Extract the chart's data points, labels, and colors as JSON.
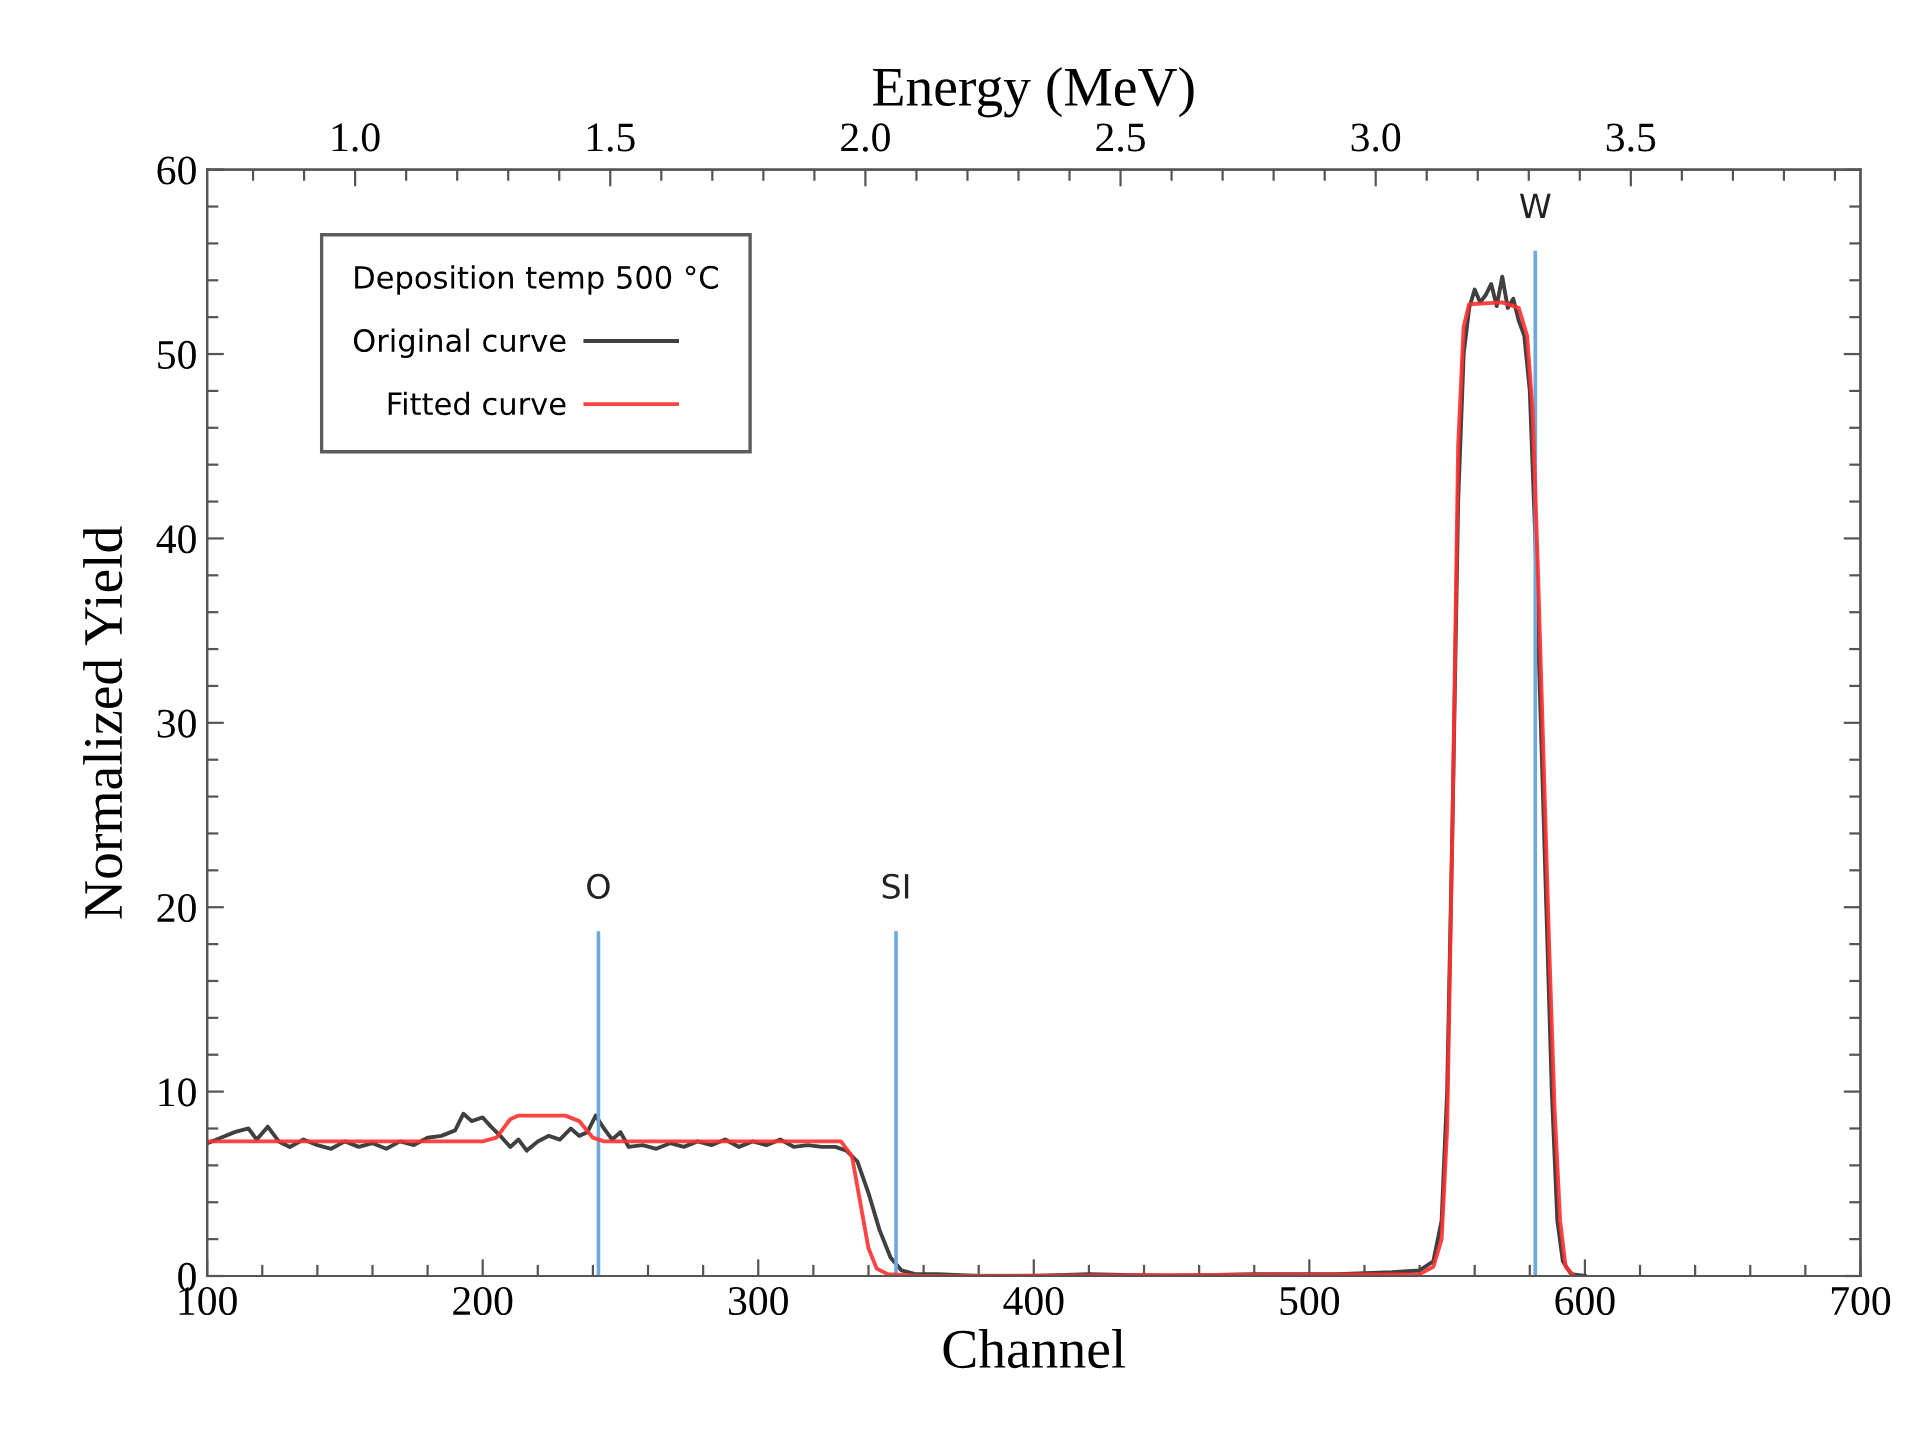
{
  "chart_data": {
    "type": "line",
    "xlabel": "Channel",
    "ylabel": "Normalized Yield",
    "x2label": "Energy (MeV)",
    "legend_title": "Deposition temp 500 °C",
    "xlim": [
      100,
      700
    ],
    "xticks": [
      100,
      {
        "value": 120,
        "label": null
      },
      {
        "value": 140,
        "label": null
      },
      {
        "value": 160,
        "label": null
      },
      {
        "value": 180,
        "label": null
      },
      200,
      {
        "value": 220,
        "label": null
      },
      {
        "value": 240,
        "label": null
      },
      {
        "value": 260,
        "label": null
      },
      {
        "value": 280,
        "label": null
      },
      300,
      {
        "value": 320,
        "label": null
      },
      {
        "value": 340,
        "label": null
      },
      {
        "value": 360,
        "label": null
      },
      {
        "value": 380,
        "label": null
      },
      400,
      {
        "value": 420,
        "label": null
      },
      {
        "value": 440,
        "label": null
      },
      {
        "value": 460,
        "label": null
      },
      {
        "value": 480,
        "label": null
      },
      500,
      {
        "value": 520,
        "label": null
      },
      {
        "value": 540,
        "label": null
      },
      {
        "value": 560,
        "label": null
      },
      {
        "value": 580,
        "label": null
      },
      600,
      {
        "value": 620,
        "label": null
      },
      {
        "value": 640,
        "label": null
      },
      {
        "value": 660,
        "label": null
      },
      {
        "value": 680,
        "label": null
      },
      700
    ],
    "ylim": [
      0,
      60
    ],
    "yticks": [
      0,
      {
        "value": 2,
        "label": null
      },
      {
        "value": 4,
        "label": null
      },
      {
        "value": 6,
        "label": null
      },
      {
        "value": 8,
        "label": null
      },
      10,
      {
        "value": 12,
        "label": null
      },
      {
        "value": 14,
        "label": null
      },
      {
        "value": 16,
        "label": null
      },
      {
        "value": 18,
        "label": null
      },
      20,
      {
        "value": 22,
        "label": null
      },
      {
        "value": 24,
        "label": null
      },
      {
        "value": 26,
        "label": null
      },
      {
        "value": 28,
        "label": null
      },
      30,
      {
        "value": 32,
        "label": null
      },
      {
        "value": 34,
        "label": null
      },
      {
        "value": 36,
        "label": null
      },
      {
        "value": 38,
        "label": null
      },
      40,
      {
        "value": 42,
        "label": null
      },
      {
        "value": 44,
        "label": null
      },
      {
        "value": 46,
        "label": null
      },
      {
        "value": 48,
        "label": null
      },
      50,
      {
        "value": 52,
        "label": null
      },
      {
        "value": 54,
        "label": null
      },
      {
        "value": 56,
        "label": null
      },
      {
        "value": 58,
        "label": null
      },
      60
    ],
    "x2lim": [
      0.71,
      3.95
    ],
    "x2ticks": [
      {
        "value": 0.8,
        "label": null
      },
      {
        "value": 0.9,
        "label": null
      },
      {
        "value": 1.0,
        "label": "1.0"
      },
      {
        "value": 1.1,
        "label": null
      },
      {
        "value": 1.2,
        "label": null
      },
      {
        "value": 1.3,
        "label": null
      },
      {
        "value": 1.4,
        "label": null
      },
      1.5,
      {
        "value": 1.6,
        "label": null
      },
      {
        "value": 1.7,
        "label": null
      },
      {
        "value": 1.8,
        "label": null
      },
      {
        "value": 1.9,
        "label": null
      },
      {
        "value": 2.0,
        "label": "2.0"
      },
      {
        "value": 2.1,
        "label": null
      },
      {
        "value": 2.2,
        "label": null
      },
      {
        "value": 2.3,
        "label": null
      },
      {
        "value": 2.4,
        "label": null
      },
      2.5,
      {
        "value": 2.6,
        "label": null
      },
      {
        "value": 2.7,
        "label": null
      },
      {
        "value": 2.8,
        "label": null
      },
      {
        "value": 2.9,
        "label": null
      },
      {
        "value": 3.0,
        "label": "3.0"
      },
      {
        "value": 3.1,
        "label": null
      },
      {
        "value": 3.2,
        "label": null
      },
      {
        "value": 3.3,
        "label": null
      },
      {
        "value": 3.4,
        "label": null
      },
      3.5,
      {
        "value": 3.6,
        "label": null
      },
      {
        "value": 3.7,
        "label": null
      },
      {
        "value": 3.8,
        "label": null
      },
      {
        "value": 3.9,
        "label": null
      }
    ],
    "grid": false,
    "legend": "top left",
    "marker": "none",
    "line_style": "solid",
    "ref_lines": [
      {
        "axis": "x",
        "value": 242,
        "label": "O",
        "color": "#6fa8dc"
      },
      {
        "axis": "x",
        "value": 350,
        "label": "SI",
        "color": "#6fa8dc"
      },
      {
        "axis": "x",
        "value": 582,
        "label": "W",
        "color": "#6fa8dc"
      }
    ],
    "series": [
      {
        "name": "Original curve",
        "color": "#404040",
        "x": [
          100,
          105,
          110,
          115,
          118,
          122,
          126,
          130,
          135,
          140,
          145,
          150,
          155,
          160,
          165,
          170,
          175,
          180,
          185,
          190,
          193,
          196,
          200,
          203,
          207,
          210,
          213,
          216,
          220,
          224,
          228,
          232,
          235,
          238,
          241,
          244,
          247,
          250,
          253,
          258,
          263,
          268,
          273,
          278,
          283,
          288,
          293,
          298,
          303,
          308,
          313,
          318,
          323,
          328,
          332,
          336,
          340,
          344,
          348,
          352,
          357,
          365,
          380,
          400,
          420,
          450,
          480,
          510,
          530,
          540,
          545,
          548,
          550,
          552,
          554,
          556,
          558,
          560,
          562,
          564,
          566,
          568,
          570,
          572,
          574,
          576,
          578,
          580,
          582,
          584,
          586,
          588,
          590,
          592,
          595,
          600
        ],
        "values": [
          7.2,
          7.5,
          7.8,
          8.0,
          7.4,
          8.1,
          7.3,
          7.0,
          7.4,
          7.1,
          6.9,
          7.3,
          7.0,
          7.2,
          6.9,
          7.3,
          7.1,
          7.5,
          7.6,
          7.9,
          8.8,
          8.4,
          8.6,
          8.1,
          7.5,
          7.0,
          7.4,
          6.8,
          7.3,
          7.6,
          7.4,
          8.0,
          7.6,
          7.8,
          8.7,
          8.0,
          7.4,
          7.8,
          7.0,
          7.1,
          6.9,
          7.2,
          7.0,
          7.3,
          7.1,
          7.4,
          7.0,
          7.3,
          7.1,
          7.4,
          7.0,
          7.1,
          7.0,
          7.0,
          6.8,
          6.2,
          4.5,
          2.5,
          1.0,
          0.3,
          0.1,
          0.1,
          0,
          0,
          0.1,
          0,
          0.1,
          0.1,
          0.2,
          0.3,
          0.8,
          3,
          10,
          25,
          42,
          50,
          52.5,
          53.5,
          52.8,
          53.2,
          53.8,
          52.6,
          54.2,
          52.5,
          53.0,
          51.8,
          51.0,
          48,
          40,
          30,
          20,
          10,
          3,
          0.8,
          0.1,
          0
        ]
      },
      {
        "name": "Fitted curve",
        "color": "#ff3030",
        "x": [
          100,
          150,
          200,
          205,
          210,
          213,
          230,
          235,
          240,
          244,
          300,
          330,
          334,
          337,
          340,
          343,
          347,
          360,
          540,
          545,
          548,
          550,
          552,
          554,
          556,
          558,
          570,
          576,
          579,
          581,
          583,
          585,
          587,
          589,
          591,
          593,
          596
        ],
        "values": [
          7.3,
          7.3,
          7.3,
          7.5,
          8.5,
          8.7,
          8.7,
          8.4,
          7.5,
          7.3,
          7.3,
          7.3,
          6.5,
          4,
          1.5,
          0.4,
          0.1,
          0,
          0.1,
          0.5,
          2,
          8,
          25,
          45,
          51.5,
          52.7,
          52.8,
          52.5,
          51,
          47,
          38,
          28,
          18,
          9,
          3,
          0.5,
          0
        ]
      }
    ]
  }
}
